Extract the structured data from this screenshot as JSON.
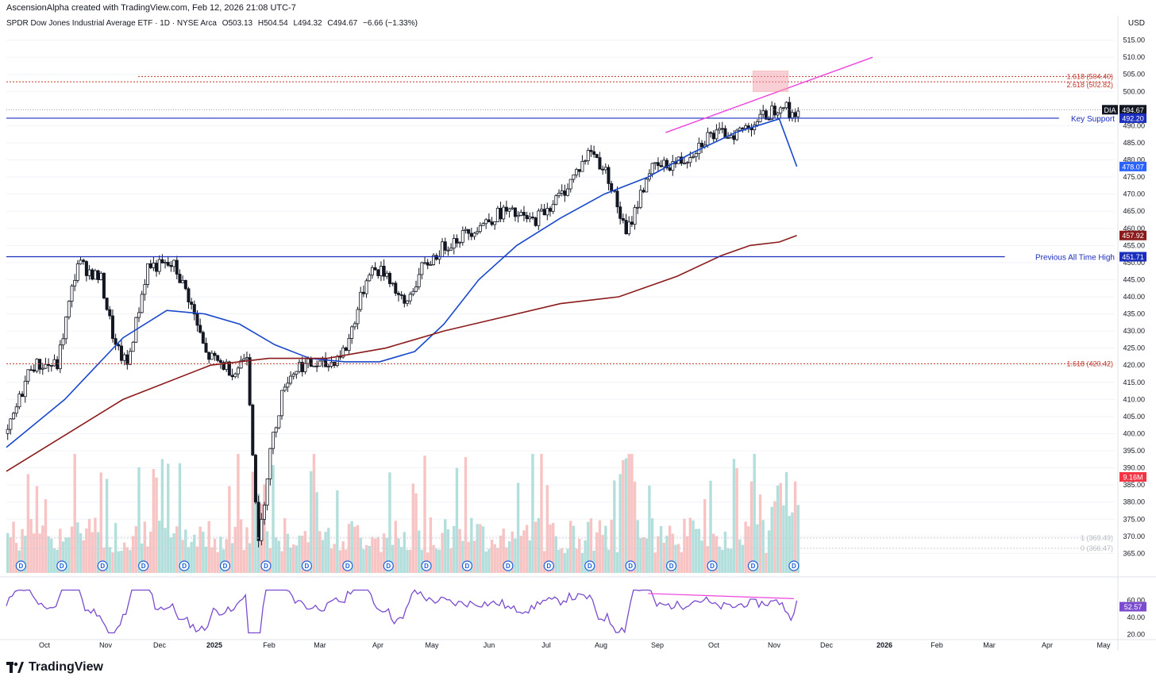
{
  "header": {
    "attribution": "AscensionAlpha created with TradingView.com, Feb 12, 2026 21:08 UTC-7",
    "symbol_line": "SPDR Dow Jones Industrial Average ETF · 1D · NYSE Arca",
    "open": "O503.13",
    "high": "H504.54",
    "low": "L494.32",
    "close": "C494.67",
    "change": "−6.66 (−1.33%)",
    "currency": "USD"
  },
  "logo": {
    "text": "TradingView",
    "icon": "tradingview-logo-icon"
  },
  "colors": {
    "up": "#131722",
    "down": "#131722",
    "ma_blue": "#1848cc",
    "ma_red": "#8b1a1a",
    "vol_up": "#b2dfdb",
    "vol_down": "#f7c3c3",
    "fib": "#c0392b",
    "support": "#1a2dbd",
    "rsi": "#7b4ccf",
    "trend": "#ee44dd",
    "current": "#131722",
    "div_marker": "#1a5fd8"
  },
  "chart_data": {
    "type": "candlestick",
    "title": "SPDR Dow Jones Industrial Average ETF · 1D · NYSE Arca",
    "ylim": [
      363,
      517
    ],
    "y_ticks": [
      "515.00",
      "510.00",
      "505.00",
      "500.00",
      "490.00",
      "485.00",
      "480.00",
      "475.00",
      "470.00",
      "465.00",
      "460.00",
      "455.00",
      "450.00",
      "445.00",
      "440.00",
      "435.00",
      "430.00",
      "425.00",
      "420.00",
      "415.00",
      "410.00",
      "405.00",
      "400.00",
      "395.00",
      "390.00",
      "385.00",
      "380.00",
      "375.00",
      "370.00",
      "365.00"
    ],
    "x_months": [
      "Oct",
      "Nov",
      "Dec",
      "2025",
      "Feb",
      "Mar",
      "Apr",
      "May",
      "Jun",
      "Jul",
      "Aug",
      "Sep",
      "Oct",
      "Nov",
      "Dec",
      "2026",
      "Feb",
      "Mar",
      "Apr",
      "May"
    ],
    "price_path": [
      [
        0,
        400
      ],
      [
        8,
        420
      ],
      [
        17,
        420
      ],
      [
        22,
        442
      ],
      [
        24,
        450
      ],
      [
        32,
        445
      ],
      [
        37,
        425
      ],
      [
        41,
        420
      ],
      [
        48,
        449
      ],
      [
        57,
        449
      ],
      [
        62,
        440
      ],
      [
        68,
        423
      ],
      [
        78,
        418
      ],
      [
        82,
        424
      ],
      [
        86,
        367
      ],
      [
        90,
        395
      ],
      [
        95,
        415
      ],
      [
        100,
        420
      ],
      [
        110,
        420
      ],
      [
        116,
        425
      ],
      [
        124,
        448
      ],
      [
        130,
        447
      ],
      [
        136,
        437
      ],
      [
        142,
        448
      ],
      [
        150,
        455
      ],
      [
        160,
        460
      ],
      [
        170,
        465
      ],
      [
        180,
        462
      ],
      [
        190,
        470
      ],
      [
        200,
        483
      ],
      [
        206,
        475
      ],
      [
        212,
        458
      ],
      [
        220,
        477
      ],
      [
        232,
        480
      ],
      [
        240,
        487
      ],
      [
        250,
        488
      ],
      [
        260,
        493
      ],
      [
        266,
        497
      ],
      [
        268,
        493
      ],
      [
        271,
        494.67
      ]
    ],
    "ma_blue": [
      [
        0,
        396
      ],
      [
        20,
        410
      ],
      [
        40,
        428
      ],
      [
        55,
        436
      ],
      [
        68,
        435
      ],
      [
        80,
        432
      ],
      [
        92,
        426
      ],
      [
        104,
        422
      ],
      [
        116,
        421
      ],
      [
        128,
        421
      ],
      [
        140,
        424
      ],
      [
        150,
        432
      ],
      [
        162,
        445
      ],
      [
        175,
        455
      ],
      [
        190,
        463
      ],
      [
        205,
        470
      ],
      [
        220,
        475
      ],
      [
        235,
        482
      ],
      [
        250,
        488
      ],
      [
        265,
        492
      ],
      [
        271,
        478.07
      ]
    ],
    "ma_red": [
      [
        0,
        389
      ],
      [
        40,
        410
      ],
      [
        70,
        420
      ],
      [
        90,
        422
      ],
      [
        110,
        422
      ],
      [
        130,
        425
      ],
      [
        150,
        430
      ],
      [
        170,
        434
      ],
      [
        190,
        438
      ],
      [
        210,
        440
      ],
      [
        230,
        446
      ],
      [
        245,
        452
      ],
      [
        255,
        455
      ],
      [
        265,
        456
      ],
      [
        271,
        457.92
      ]
    ],
    "price_labels": [
      {
        "text": "DIA",
        "value": "494.67",
        "kind": "current"
      },
      {
        "text": "Key Support",
        "value": "492.20",
        "kind": "support"
      },
      {
        "text": "",
        "value": "478.07",
        "kind": "ma_blue"
      },
      {
        "text": "",
        "value": "457.92",
        "kind": "ma_red"
      },
      {
        "text": "Previous All Time High",
        "value": "451.71",
        "kind": "support"
      },
      {
        "text": "",
        "value": "9.16M",
        "kind": "volume"
      }
    ],
    "fib_levels": [
      {
        "label": "1.618 (504.40)",
        "value": 504.4
      },
      {
        "label": "2.618 (502.82)",
        "value": 502.82
      },
      {
        "label": "1.618 (420.42)",
        "value": 420.42
      },
      {
        "label": "1 (369.49)",
        "value": 369.49
      },
      {
        "label": "0 (366.47)",
        "value": 366.47
      }
    ],
    "support_levels": [
      {
        "label": "Key Support",
        "value": 492.2
      },
      {
        "label": "Previous All Time High",
        "value": 451.71
      }
    ],
    "dividend_marker_label": "D",
    "dividend_count": 20,
    "rsi": {
      "ticks": [
        "60.00",
        "40.00",
        "20.00"
      ],
      "value_label": "52.57",
      "range": [
        15,
        80
      ]
    }
  }
}
